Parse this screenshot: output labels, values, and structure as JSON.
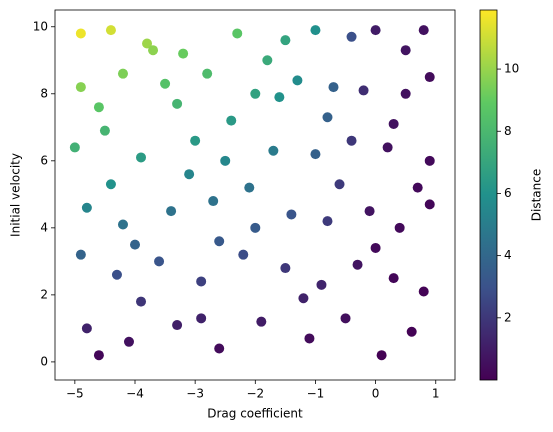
{
  "chart_data": {
    "type": "scatter",
    "xlabel": "Drag coefficient",
    "ylabel": "Initial velocity",
    "colorbar_label": "Distance",
    "colormap": "viridis",
    "x": [
      -4.9,
      -4.4,
      -3.8,
      -3.2,
      -2.3,
      -1.5,
      -1.0,
      -0.4,
      0.0,
      0.8,
      -4.9,
      -4.2,
      -3.5,
      -2.8,
      -2.0,
      -1.3,
      -0.7,
      -0.2,
      0.5,
      0.9,
      -5.0,
      -4.5,
      -3.9,
      -3.0,
      -2.5,
      -1.7,
      -1.0,
      -0.4,
      0.2,
      0.9,
      -4.8,
      -4.2,
      -3.4,
      -2.7,
      -2.0,
      -1.4,
      -0.8,
      -0.1,
      0.4,
      0.9,
      -4.9,
      -4.3,
      -3.6,
      -2.9,
      -2.2,
      -1.5,
      -0.9,
      -0.3,
      0.3,
      0.8,
      -4.8,
      -4.1,
      -3.3,
      -2.6,
      -1.9,
      -1.1,
      -0.5,
      0.1,
      0.6,
      -4.6,
      -3.9,
      -3.1,
      -2.4,
      -1.8,
      -0.8,
      0.3,
      -4.6,
      -3.7,
      -2.1,
      -0.6,
      0.7,
      -1.2,
      -4.4,
      -3.3,
      -2.6,
      0.0,
      -1.6,
      -4.0,
      0.5,
      -2.9
    ],
    "values": [
      9.8,
      9.9,
      9.5,
      9.2,
      9.8,
      9.6,
      9.9,
      9.7,
      9.9,
      9.9,
      8.2,
      8.6,
      8.3,
      8.6,
      8.0,
      8.4,
      8.2,
      8.1,
      8.0,
      8.5,
      6.4,
      6.9,
      6.1,
      6.6,
      6.0,
      6.3,
      6.2,
      6.6,
      6.4,
      6.0,
      4.6,
      4.1,
      4.5,
      4.8,
      4.0,
      4.4,
      4.2,
      4.5,
      4.0,
      4.7,
      3.2,
      2.6,
      3.0,
      2.4,
      3.2,
      2.8,
      2.3,
      2.9,
      2.5,
      2.1,
      1.0,
      0.6,
      1.1,
      0.4,
      1.2,
      0.7,
      1.3,
      0.2,
      0.9,
      0.2,
      1.8,
      5.6,
      7.2,
      9.0,
      7.3,
      7.1,
      7.6,
      9.3,
      5.2,
      5.3,
      5.2,
      1.9,
      5.3,
      7.7,
      3.6,
      3.4,
      7.9,
      3.5,
      9.3,
      1.3
    ],
    "color_values": [
      11.6,
      11.1,
      10.1,
      9.1,
      8.7,
      6.9,
      5.9,
      2.9,
      1.0,
      0.6,
      9.7,
      9.5,
      8.5,
      8.2,
      6.8,
      5.7,
      3.7,
      1.6,
      0.6,
      0.4,
      7.6,
      7.8,
      6.5,
      6.4,
      5.5,
      4.9,
      3.7,
      2.0,
      0.6,
      0.3,
      5.4,
      4.5,
      4.5,
      4.5,
      3.4,
      3.1,
      2.1,
      0.7,
      0.3,
      0.2,
      3.8,
      2.9,
      3.1,
      2.3,
      2.8,
      2.0,
      1.3,
      0.7,
      0.2,
      0.1,
      1.2,
      0.6,
      1.1,
      0.4,
      1.0,
      0.4,
      0.5,
      0.02,
      0.06,
      0.2,
      1.9,
      5.4,
      6.4,
      7.2,
      3.7,
      0.6,
      8.7,
      9.8,
      4.5,
      2.1,
      0.3,
      1.2,
      6.0,
      7.8,
      3.3,
      0.3,
      6.0,
      3.8,
      0.7,
      1.2
    ],
    "xlim": [
      -5.33,
      1.32
    ],
    "ylim": [
      -0.54,
      10.5
    ],
    "clim": [
      0.0,
      11.9
    ],
    "xticks": [
      {
        "value": -5,
        "label": "−5"
      },
      {
        "value": -4,
        "label": "−4"
      },
      {
        "value": -3,
        "label": "−3"
      },
      {
        "value": -2,
        "label": "−2"
      },
      {
        "value": -1,
        "label": "−1"
      },
      0,
      1
    ],
    "yticks": [
      0,
      2,
      4,
      6,
      8,
      10
    ],
    "cticks": [
      2,
      4,
      6,
      8,
      10
    ]
  }
}
